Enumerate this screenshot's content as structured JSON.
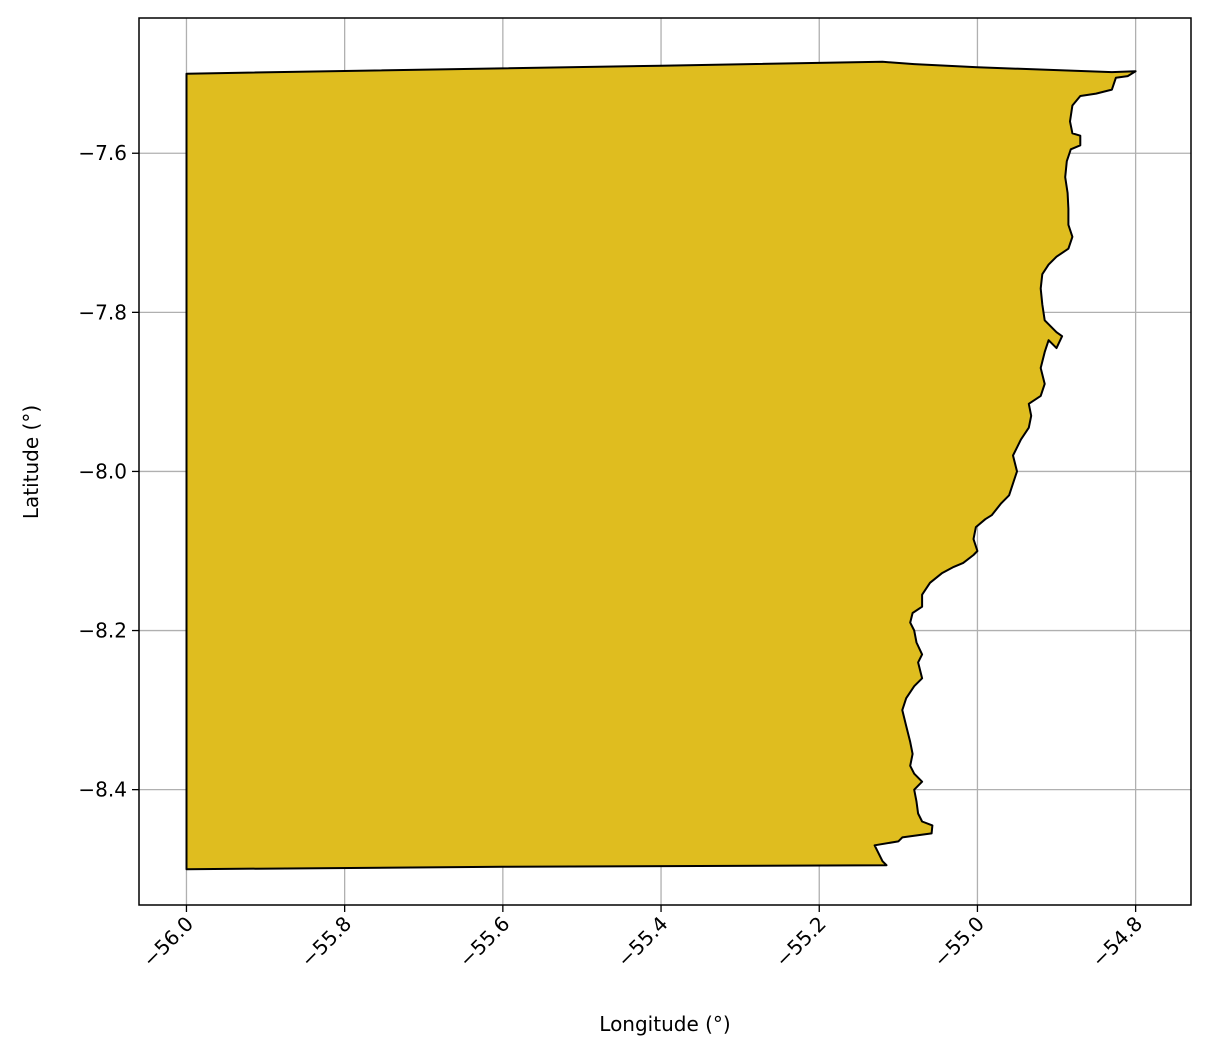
{
  "map": {
    "x_axis_label": "Longitude (°)",
    "y_axis_label": "Latitude (°)",
    "xlim": [
      -56.06,
      -54.73
    ],
    "ylim": [
      -8.545,
      -7.43
    ],
    "x_ticks": [
      -56.0,
      -55.8,
      -55.6,
      -55.4,
      -55.2,
      -55.0,
      -54.8
    ],
    "x_tick_labels": [
      "−56.0",
      "−55.8",
      "−55.6",
      "−55.4",
      "−55.2",
      "−55.0",
      "−54.8"
    ],
    "y_ticks": [
      -7.6,
      -7.8,
      -8.0,
      -8.2,
      -8.4
    ],
    "y_tick_labels": [
      "−7.6",
      "−7.8",
      "−8.0",
      "−8.2",
      "−8.4"
    ],
    "grid": true,
    "region_fill_color": "#dfbd1f",
    "region_edge_color": "#000000",
    "grid_color": "#b0b0b0",
    "region_boundary": [
      [
        -56.0,
        -7.5
      ],
      [
        -55.4,
        -7.49
      ],
      [
        -55.12,
        -7.485
      ],
      [
        -55.08,
        -7.488
      ],
      [
        -55.0,
        -7.492
      ],
      [
        -54.83,
        -7.498
      ],
      [
        -54.8,
        -7.497
      ],
      [
        -54.81,
        -7.503
      ],
      [
        -54.825,
        -7.505
      ],
      [
        -54.83,
        -7.52
      ],
      [
        -54.85,
        -7.525
      ],
      [
        -54.87,
        -7.528
      ],
      [
        -54.88,
        -7.54
      ],
      [
        -54.883,
        -7.56
      ],
      [
        -54.88,
        -7.575
      ],
      [
        -54.87,
        -7.578
      ],
      [
        -54.87,
        -7.59
      ],
      [
        -54.882,
        -7.595
      ],
      [
        -54.887,
        -7.61
      ],
      [
        -54.889,
        -7.63
      ],
      [
        -54.886,
        -7.65
      ],
      [
        -54.885,
        -7.67
      ],
      [
        -54.885,
        -7.69
      ],
      [
        -54.88,
        -7.705
      ],
      [
        -54.885,
        -7.72
      ],
      [
        -54.9,
        -7.73
      ],
      [
        -54.91,
        -7.74
      ],
      [
        -54.918,
        -7.752
      ],
      [
        -54.92,
        -7.77
      ],
      [
        -54.918,
        -7.79
      ],
      [
        -54.915,
        -7.81
      ],
      [
        -54.9,
        -7.825
      ],
      [
        -54.893,
        -7.83
      ],
      [
        -54.9,
        -7.845
      ],
      [
        -54.91,
        -7.835
      ],
      [
        -54.915,
        -7.85
      ],
      [
        -54.92,
        -7.87
      ],
      [
        -54.915,
        -7.89
      ],
      [
        -54.92,
        -7.905
      ],
      [
        -54.935,
        -7.915
      ],
      [
        -54.932,
        -7.93
      ],
      [
        -54.935,
        -7.945
      ],
      [
        -54.945,
        -7.96
      ],
      [
        -54.955,
        -7.98
      ],
      [
        -54.95,
        -8.0
      ],
      [
        -54.955,
        -8.015
      ],
      [
        -54.96,
        -8.03
      ],
      [
        -54.97,
        -8.04
      ],
      [
        -54.982,
        -8.055
      ],
      [
        -54.99,
        -8.06
      ],
      [
        -55.002,
        -8.07
      ],
      [
        -55.005,
        -8.085
      ],
      [
        -55.0,
        -8.1
      ],
      [
        -55.005,
        -8.105
      ],
      [
        -55.018,
        -8.115
      ],
      [
        -55.03,
        -8.12
      ],
      [
        -55.045,
        -8.128
      ],
      [
        -55.06,
        -8.14
      ],
      [
        -55.07,
        -8.155
      ],
      [
        -55.07,
        -8.17
      ],
      [
        -55.082,
        -8.178
      ],
      [
        -55.085,
        -8.19
      ],
      [
        -55.08,
        -8.2
      ],
      [
        -55.077,
        -8.215
      ],
      [
        -55.07,
        -8.23
      ],
      [
        -55.075,
        -8.24
      ],
      [
        -55.07,
        -8.26
      ],
      [
        -55.08,
        -8.27
      ],
      [
        -55.09,
        -8.285
      ],
      [
        -55.095,
        -8.3
      ],
      [
        -55.09,
        -8.32
      ],
      [
        -55.085,
        -8.34
      ],
      [
        -55.082,
        -8.355
      ],
      [
        -55.085,
        -8.37
      ],
      [
        -55.08,
        -8.38
      ],
      [
        -55.07,
        -8.39
      ],
      [
        -55.08,
        -8.4
      ],
      [
        -55.077,
        -8.415
      ],
      [
        -55.075,
        -8.43
      ],
      [
        -55.07,
        -8.44
      ],
      [
        -55.057,
        -8.445
      ],
      [
        -55.058,
        -8.455
      ],
      [
        -55.095,
        -8.46
      ],
      [
        -55.1,
        -8.465
      ],
      [
        -55.13,
        -8.47
      ],
      [
        -55.12,
        -8.49
      ],
      [
        -55.115,
        -8.495
      ],
      [
        -55.6,
        -8.497
      ],
      [
        -56.0,
        -8.5
      ]
    ]
  }
}
